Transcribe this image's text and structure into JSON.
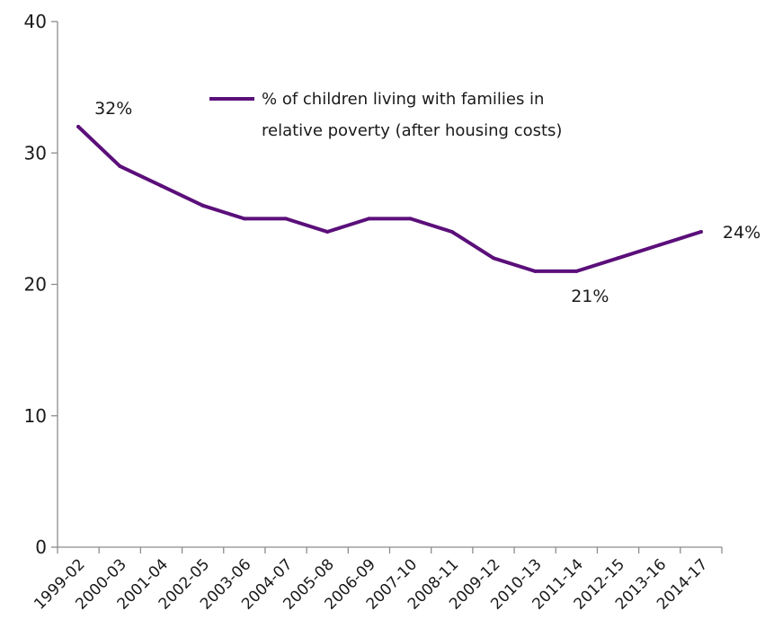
{
  "chart_data": {
    "type": "line",
    "title": "",
    "xlabel": "",
    "ylabel": "",
    "ylim": [
      0,
      40
    ],
    "yticks": [
      0,
      10,
      20,
      30,
      40
    ],
    "grid": false,
    "legend_position": "top-center",
    "categories": [
      "1999-02",
      "2000-03",
      "2001-04",
      "2002-05",
      "2003-06",
      "2004-07",
      "2005-08",
      "2006-09",
      "2007-10",
      "2008-11",
      "2009-12",
      "2010-13",
      "2011-14",
      "2012-15",
      "2013-16",
      "2014-17"
    ],
    "series": [
      {
        "name": "% of children living with families in relative poverty (after housing costs)",
        "legend_lines": [
          "% of children living with families in",
          "relative poverty (after housing costs)"
        ],
        "color": "#5b0f7a",
        "values": [
          32,
          29,
          27.5,
          26,
          25,
          25,
          24,
          25,
          25,
          24,
          22,
          21,
          21,
          22,
          23,
          24
        ]
      }
    ],
    "annotations": [
      {
        "category": "1999-02",
        "value": 32,
        "text": "32%"
      },
      {
        "category": "2011-14",
        "value": 21,
        "text": "21%"
      },
      {
        "category": "2014-17",
        "value": 24,
        "text": "24%"
      }
    ]
  }
}
